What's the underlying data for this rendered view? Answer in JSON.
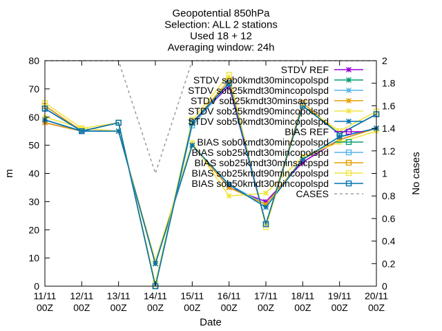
{
  "chart_data": {
    "type": "line",
    "title_lines": [
      "Geopotential 850hPa",
      "Selection: ALL       2 stations",
      "Used 18 + 12",
      "Averaging window: 24h"
    ],
    "xlabel": "Date",
    "ylabel": "m",
    "y2label": "No cases",
    "categories": [
      "11/11",
      "12/11",
      "13/11",
      "14/11",
      "15/11",
      "16/11",
      "17/11",
      "18/11",
      "19/11",
      "20/11"
    ],
    "category_sublabel": "00Z",
    "ylim": [
      0,
      80
    ],
    "yticks": [
      0,
      10,
      20,
      30,
      40,
      50,
      60,
      70,
      80
    ],
    "y2lim": [
      0,
      2
    ],
    "y2ticks": [
      "0",
      "0.2",
      "0.4",
      "0.6",
      "0.8",
      "1",
      "1.2",
      "1.4",
      "1.6",
      "1.8",
      "2"
    ],
    "grid": false,
    "legend_position": "top-right",
    "series": [
      {
        "name": "STDV REF",
        "color": "#9400d3",
        "marker": "star",
        "axis": "y",
        "values": [
          58,
          55,
          55,
          8,
          50,
          35,
          30,
          44,
          52,
          56
        ]
      },
      {
        "name": "STDV sob0kmdt30mincopolspd",
        "color": "#009e73",
        "marker": "star",
        "axis": "y",
        "values": [
          59,
          55,
          55,
          8,
          50,
          36,
          29,
          45,
          53,
          56
        ]
      },
      {
        "name": "STDV sob25kmdt30mincopolspd",
        "color": "#56b4e9",
        "marker": "star",
        "axis": "y",
        "values": [
          59,
          55,
          55,
          8,
          50,
          36,
          29,
          45,
          53,
          56
        ]
      },
      {
        "name": "STDV sob25kmdt30minsacpspd",
        "color": "#e69f00",
        "marker": "star",
        "axis": "y",
        "values": [
          58,
          55,
          55,
          8,
          50,
          35,
          29,
          45,
          52,
          56
        ]
      },
      {
        "name": "STDV sob25kmdt90mincopolspd",
        "color": "#f0e442",
        "marker": "star",
        "axis": "y",
        "values": [
          60,
          56,
          55,
          9,
          51,
          32,
          33,
          46,
          51,
          55
        ]
      },
      {
        "name": "STDV sob50kmdt30mincopolspd",
        "color": "#0072b2",
        "marker": "star",
        "axis": "y",
        "values": [
          59,
          55,
          55,
          8,
          50,
          36,
          28,
          45,
          53,
          56
        ]
      },
      {
        "name": "BIAS REF",
        "color": "#9400d3",
        "marker": "square",
        "axis": "y",
        "values": [
          64,
          55,
          58,
          0,
          58,
          71,
          22,
          64,
          54,
          61
        ]
      },
      {
        "name": "BIAS sob0kmdt30mincopolspd",
        "color": "#009e73",
        "marker": "square",
        "axis": "y",
        "values": [
          63,
          55,
          58,
          0,
          58,
          72,
          22,
          64,
          54,
          61
        ]
      },
      {
        "name": "BIAS sob25kmdt30mincopolspd",
        "color": "#56b4e9",
        "marker": "square",
        "axis": "y",
        "values": [
          63,
          55,
          58,
          0,
          57,
          72,
          22,
          64,
          54,
          61
        ]
      },
      {
        "name": "BIAS sob25kmdt30minsacpspd",
        "color": "#e69f00",
        "marker": "square",
        "axis": "y",
        "values": [
          64,
          55,
          58,
          0,
          58,
          73,
          22,
          65,
          54,
          61
        ]
      },
      {
        "name": "BIAS sob25kmdt90mincopolspd",
        "color": "#f0e442",
        "marker": "square",
        "axis": "y",
        "values": [
          65,
          56,
          58,
          1,
          59,
          75,
          21,
          64,
          55,
          62
        ]
      },
      {
        "name": "BIAS sob50kmdt30mincopolspd",
        "color": "#0072b2",
        "marker": "square",
        "axis": "y",
        "values": [
          63,
          55,
          58,
          0,
          58,
          72,
          22,
          64,
          54,
          61
        ]
      },
      {
        "name": "CASES",
        "color": "#a0a0a0",
        "marker": "none",
        "dashed": true,
        "axis": "y2",
        "values": [
          2,
          2,
          2,
          1,
          2,
          2,
          2,
          2,
          2,
          2
        ]
      }
    ]
  }
}
